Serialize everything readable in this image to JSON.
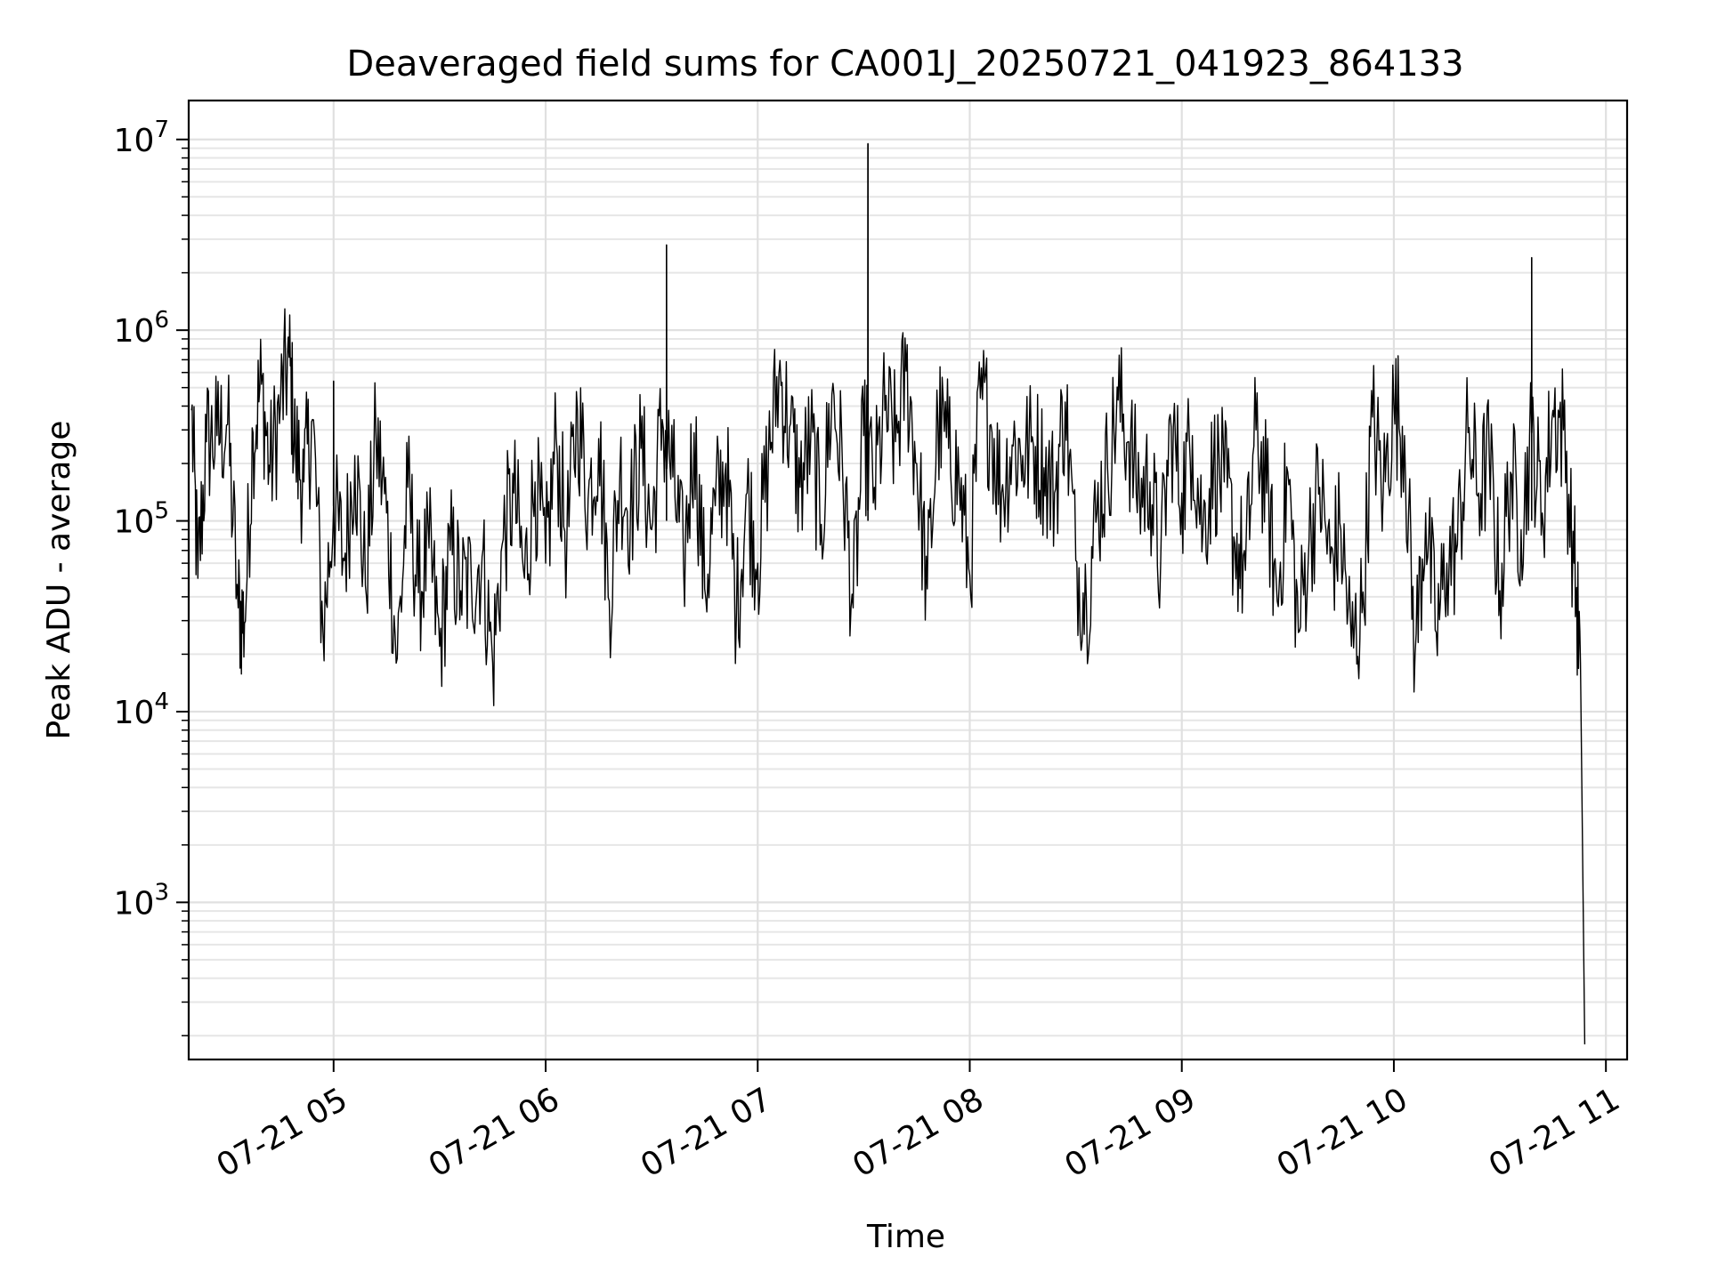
{
  "chart_data": {
    "type": "line",
    "title": "Deaveraged field sums for CA001J_20250721_041923_864133",
    "xlabel": "Time",
    "ylabel": "Peak ADU - average",
    "yscale": "log",
    "grid": true,
    "grid_minor": true,
    "legend": "none",
    "line_color": "#000000",
    "xlim": [
      "2025-07-21 04:19",
      "2025-07-21 11:06"
    ],
    "ylim": [
      150,
      16000000
    ],
    "x_ticks": [
      "07-21 05",
      "07-21 06",
      "07-21 07",
      "07-21 08",
      "07-21 09",
      "07-21 10",
      "07-21 11"
    ],
    "y_ticks": [
      {
        "base": "10",
        "exp": "3",
        "value": 1000
      },
      {
        "base": "10",
        "exp": "4",
        "value": 10000
      },
      {
        "base": "10",
        "exp": "5",
        "value": 100000
      },
      {
        "base": "10",
        "exp": "6",
        "value": 1000000
      },
      {
        "base": "10",
        "exp": "7",
        "value": 10000000
      }
    ],
    "series": [
      {
        "x_unit": "hour of day, 2025-07-21",
        "points": [
          [
            4.33,
            380000
          ],
          [
            4.36,
            50000
          ],
          [
            4.4,
            260000
          ],
          [
            4.45,
            280000
          ],
          [
            4.5,
            320000
          ],
          [
            4.55,
            35000
          ],
          [
            4.58,
            29000
          ],
          [
            4.62,
            290000
          ],
          [
            4.66,
            520000
          ],
          [
            4.7,
            180000
          ],
          [
            4.75,
            420000
          ],
          [
            4.79,
            720000
          ],
          [
            4.82,
            230000
          ],
          [
            4.86,
            160000
          ],
          [
            4.9,
            340000
          ],
          [
            4.95,
            26000
          ],
          [
            5.0,
            120000
          ],
          [
            5.05,
            62000
          ],
          [
            5.1,
            220000
          ],
          [
            5.15,
            46000
          ],
          [
            5.2,
            280000
          ],
          [
            5.25,
            110000
          ],
          [
            5.3,
            19000
          ],
          [
            5.35,
            150000
          ],
          [
            5.4,
            42000
          ],
          [
            5.45,
            72000
          ],
          [
            5.5,
            22000
          ],
          [
            5.55,
            70000
          ],
          [
            5.6,
            43000
          ],
          [
            5.65,
            48000
          ],
          [
            5.7,
            65000
          ],
          [
            5.75,
            18000
          ],
          [
            5.8,
            80000
          ],
          [
            5.85,
            140000
          ],
          [
            5.9,
            50000
          ],
          [
            5.95,
            160000
          ],
          [
            6.0,
            60000
          ],
          [
            6.05,
            270000
          ],
          [
            6.1,
            75000
          ],
          [
            6.15,
            380000
          ],
          [
            6.2,
            130000
          ],
          [
            6.25,
            270000
          ],
          [
            6.3,
            38000
          ],
          [
            6.35,
            180000
          ],
          [
            6.4,
            110000
          ],
          [
            6.45,
            240000
          ],
          [
            6.5,
            90000
          ],
          [
            6.55,
            340000
          ],
          [
            6.6,
            170000
          ],
          [
            6.65,
            58000
          ],
          [
            6.7,
            290000
          ],
          [
            6.75,
            44000
          ],
          [
            6.8,
            120000
          ],
          [
            6.85,
            200000
          ],
          [
            6.9,
            33000
          ],
          [
            6.95,
            140000
          ],
          [
            7.0,
            60000
          ],
          [
            7.05,
            210000
          ],
          [
            7.1,
            590000
          ],
          [
            7.15,
            310000
          ],
          [
            7.2,
            150000
          ],
          [
            7.25,
            270000
          ],
          [
            7.3,
            96000
          ],
          [
            7.35,
            460000
          ],
          [
            7.4,
            190000
          ],
          [
            7.45,
            35000
          ],
          [
            7.5,
            280000
          ],
          [
            7.55,
            150000
          ],
          [
            7.6,
            380000
          ],
          [
            7.65,
            260000
          ],
          [
            7.7,
            610000
          ],
          [
            7.75,
            200000
          ],
          [
            7.8,
            44000
          ],
          [
            7.85,
            330000
          ],
          [
            7.9,
            240000
          ],
          [
            7.95,
            160000
          ],
          [
            8.0,
            52000
          ],
          [
            8.05,
            440000
          ],
          [
            8.1,
            320000
          ],
          [
            8.15,
            140000
          ],
          [
            8.2,
            250000
          ],
          [
            8.25,
            220000
          ],
          [
            8.3,
            250000
          ],
          [
            8.35,
            190000
          ],
          [
            8.4,
            140000
          ],
          [
            8.45,
            420000
          ],
          [
            8.5,
            62000
          ],
          [
            8.55,
            38000
          ],
          [
            8.6,
            110000
          ],
          [
            8.65,
            190000
          ],
          [
            8.7,
            430000
          ],
          [
            8.75,
            260000
          ],
          [
            8.8,
            140000
          ],
          [
            8.85,
            160000
          ],
          [
            8.9,
            58000
          ],
          [
            8.95,
            310000
          ],
          [
            9.0,
            140000
          ],
          [
            9.05,
            280000
          ],
          [
            9.1,
            90000
          ],
          [
            9.15,
            200000
          ],
          [
            9.2,
            160000
          ],
          [
            9.25,
            76000
          ],
          [
            9.3,
            55000
          ],
          [
            9.35,
            300000
          ],
          [
            9.4,
            140000
          ],
          [
            9.45,
            38000
          ],
          [
            9.5,
            180000
          ],
          [
            9.55,
            26000
          ],
          [
            9.6,
            80000
          ],
          [
            9.65,
            150000
          ],
          [
            9.7,
            60000
          ],
          [
            9.75,
            90000
          ],
          [
            9.8,
            22000
          ],
          [
            9.85,
            33000
          ],
          [
            9.9,
            350000
          ],
          [
            9.95,
            140000
          ],
          [
            10.0,
            410000
          ],
          [
            10.05,
            280000
          ],
          [
            10.1,
            20000
          ],
          [
            10.15,
            110000
          ],
          [
            10.2,
            26000
          ],
          [
            10.25,
            60000
          ],
          [
            10.3,
            75000
          ],
          [
            10.35,
            290000
          ],
          [
            10.4,
            140000
          ],
          [
            10.45,
            220000
          ],
          [
            10.5,
            43000
          ],
          [
            10.55,
            180000
          ],
          [
            10.6,
            90000
          ],
          [
            10.65,
            290000
          ],
          [
            10.7,
            110000
          ],
          [
            10.75,
            380000
          ],
          [
            10.8,
            300000
          ],
          [
            10.85,
            60000
          ],
          [
            10.88,
            18000
          ],
          [
            10.9,
            180
          ]
        ],
        "spikes": [
          {
            "x": 5.0,
            "y": 540000
          },
          {
            "x": 6.57,
            "y": 2800000
          },
          {
            "x": 7.52,
            "y": 9500000
          },
          {
            "x": 10.65,
            "y": 2400000
          }
        ]
      }
    ]
  }
}
